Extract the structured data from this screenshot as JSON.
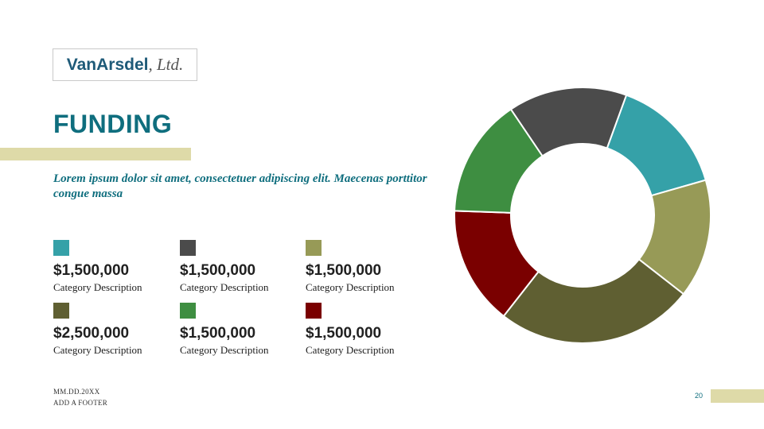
{
  "logo": {
    "brand": "VanArsdel",
    "suffix": ", Ltd."
  },
  "title": "FUNDING",
  "subtitle": "Lorem ipsum dolor sit amet, consectetuer adipiscing elit. Maecenas porttitor congue massa",
  "colors": {
    "teal": "#35a1a8",
    "charcoal": "#4b4b4b",
    "olive_light": "#979a57",
    "olive_dark": "#5f5f32",
    "maroon": "#7a0000",
    "green": "#3e8e41",
    "accent_bar": "#dedaa8",
    "title": "#0f6e7e"
  },
  "stats": [
    {
      "value": "$1,500,000",
      "label": "Category Description",
      "color": "#35a1a8"
    },
    {
      "value": "$1,500,000",
      "label": "Category Description",
      "color": "#4b4b4b"
    },
    {
      "value": "$1,500,000",
      "label": "Category Description",
      "color": "#979a57"
    },
    {
      "value": "$2,500,000",
      "label": "Category Description",
      "color": "#5f5f32"
    },
    {
      "value": "$1,500,000",
      "label": "Category Description",
      "color": "#3e8e41"
    },
    {
      "value": "$1,500,000",
      "label": "Category Description",
      "color": "#7a0000"
    }
  ],
  "footer": {
    "date": "MM.DD.20XX",
    "text": "ADD A FOOTER"
  },
  "page_number": "20",
  "chart_data": {
    "type": "pie",
    "donut": true,
    "start_order": "clockwise from top",
    "slices": [
      {
        "value": 1.5,
        "color": "#35a1a8"
      },
      {
        "value": 1.5,
        "color": "#979a57"
      },
      {
        "value": 2.5,
        "color": "#5f5f32"
      },
      {
        "value": 1.5,
        "color": "#7a0000"
      },
      {
        "value": 1.5,
        "color": "#3e8e41"
      },
      {
        "value": 1.5,
        "color": "#4b4b4b"
      }
    ]
  }
}
